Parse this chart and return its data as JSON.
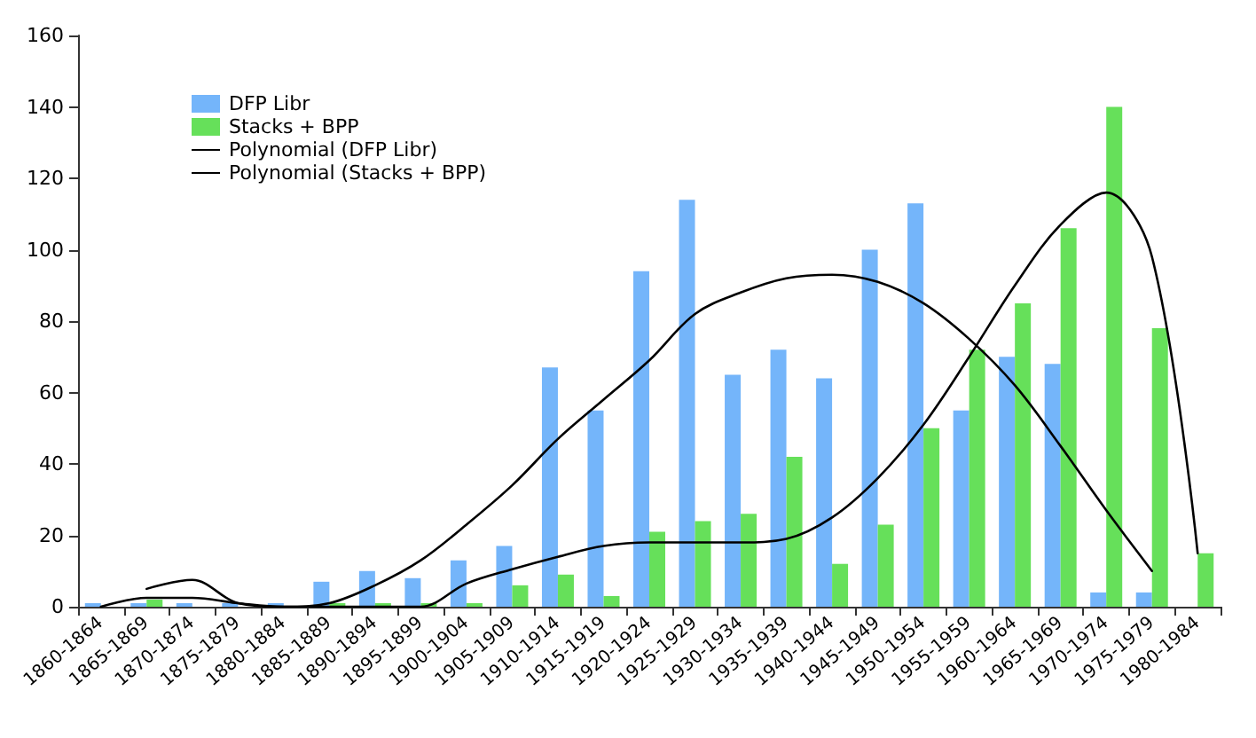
{
  "chart_data": {
    "type": "bar",
    "categories": [
      "1860-1864",
      "1865-1869",
      "1870-1874",
      "1875-1879",
      "1880-1884",
      "1885-1889",
      "1890-1894",
      "1895-1899",
      "1900-1904",
      "1905-1909",
      "1910-1914",
      "1915-1919",
      "1920-1924",
      "1925-1929",
      "1930-1934",
      "1935-1939",
      "1940-1944",
      "1945-1949",
      "1950-1954",
      "1955-1959",
      "1960-1964",
      "1965-1969",
      "1970-1974",
      "1975-1979",
      "1980-1984"
    ],
    "series": [
      {
        "name": "DFP Libr",
        "color": "#74b5fa",
        "values": [
          1,
          1,
          1,
          1,
          1,
          7,
          10,
          8,
          13,
          17,
          67,
          55,
          94,
          114,
          65,
          72,
          64,
          100,
          113,
          55,
          70,
          68,
          4,
          4,
          null
        ]
      },
      {
        "name": "Stacks + BPP",
        "color": "#66e05a",
        "values": [
          0,
          2,
          0,
          0,
          0,
          1,
          1,
          1,
          1,
          6,
          9,
          3,
          21,
          24,
          26,
          42,
          12,
          23,
          50,
          72,
          85,
          106,
          140,
          78,
          15
        ]
      },
      {
        "name": "Polynomial (DFP Libr)",
        "type": "line",
        "color": "#000000",
        "values": [
          0,
          2.5,
          2.5,
          1,
          0,
          1,
          6,
          13,
          23,
          34,
          47,
          58,
          69,
          82,
          88,
          92,
          93,
          91,
          85,
          75,
          62,
          45,
          27,
          10,
          null
        ]
      },
      {
        "name": "Polynomial (Stacks + BPP)",
        "type": "line",
        "color": "#000000",
        "values": [
          null,
          5,
          7.5,
          1,
          0,
          0,
          0,
          0,
          6.5,
          10.5,
          14,
          17,
          18,
          18,
          18,
          19,
          25,
          36,
          51,
          70,
          90,
          107,
          116,
          98,
          15
        ]
      }
    ],
    "ylim": [
      0,
      160
    ],
    "yticks": [
      0,
      20,
      40,
      60,
      80,
      100,
      120,
      140,
      160
    ],
    "grid": false,
    "legend": "top left",
    "marker": "none",
    "line_style": "solid"
  }
}
